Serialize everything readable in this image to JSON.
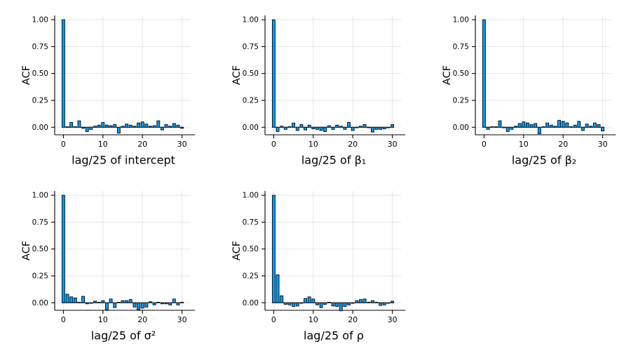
{
  "figure": {
    "background": "#ffffff",
    "rows": 2,
    "cols": 3,
    "note_empty_cell": "bottom-right cell is blank"
  },
  "style": {
    "bar_fill": "#009AFA",
    "bar_stroke": "#0b0b0b",
    "grid_color": "#e3e3e3",
    "spine_color": "#000000",
    "zero_line_color": "#111111"
  },
  "chart_data": [
    {
      "type": "bar",
      "title": "",
      "xlabel": "lag/25 of intercept",
      "ylabel": "ACF",
      "x": [
        0,
        1,
        2,
        3,
        4,
        5,
        6,
        7,
        8,
        9,
        10,
        11,
        12,
        13,
        14,
        15,
        16,
        17,
        18,
        19,
        20,
        21,
        22,
        23,
        24,
        25,
        26,
        27,
        28,
        29,
        30
      ],
      "values": [
        1.0,
        0.005,
        0.045,
        0.005,
        0.06,
        -0.01,
        -0.04,
        -0.02,
        0.01,
        0.02,
        0.045,
        0.02,
        0.015,
        0.025,
        -0.055,
        0.01,
        0.03,
        0.02,
        0.01,
        0.04,
        0.05,
        0.03,
        0.01,
        0.015,
        0.06,
        -0.025,
        0.025,
        0.01,
        0.035,
        0.02,
        -0.01
      ],
      "xticks": [
        0,
        10,
        20,
        30
      ],
      "yticks": [
        0,
        0.25,
        0.5,
        0.75,
        1.0
      ],
      "ytick_labels": [
        "0.00",
        "0.25",
        "0.50",
        "0.75",
        "1.00"
      ],
      "xlim": [
        -2.2,
        32.2
      ],
      "ylim": [
        -0.07,
        1.04
      ],
      "grid": true
    },
    {
      "type": "bar",
      "title": "",
      "xlabel": "lag/25 of β₁",
      "ylabel": "ACF",
      "x": [
        0,
        1,
        2,
        3,
        4,
        5,
        6,
        7,
        8,
        9,
        10,
        11,
        12,
        13,
        14,
        15,
        16,
        17,
        18,
        19,
        20,
        21,
        22,
        23,
        24,
        25,
        26,
        27,
        28,
        29,
        30
      ],
      "values": [
        1.0,
        -0.04,
        0.01,
        -0.02,
        0.005,
        0.04,
        -0.03,
        0.025,
        -0.025,
        0.02,
        -0.015,
        -0.02,
        -0.03,
        -0.04,
        0.015,
        -0.02,
        0.02,
        0.01,
        -0.02,
        0.045,
        -0.03,
        -0.005,
        0.01,
        0.025,
        -0.005,
        -0.045,
        -0.02,
        -0.02,
        -0.015,
        -0.005,
        0.025
      ],
      "xticks": [
        0,
        10,
        20,
        30
      ],
      "yticks": [
        0,
        0.25,
        0.5,
        0.75,
        1.0
      ],
      "ytick_labels": [
        "0.00",
        "0.25",
        "0.50",
        "0.75",
        "1.00"
      ],
      "xlim": [
        -2.2,
        32.2
      ],
      "ylim": [
        -0.07,
        1.04
      ],
      "grid": true
    },
    {
      "type": "bar",
      "title": "",
      "xlabel": "lag/25 of β₂",
      "ylabel": "ACF",
      "x": [
        0,
        1,
        2,
        3,
        4,
        5,
        6,
        7,
        8,
        9,
        10,
        11,
        12,
        13,
        14,
        15,
        16,
        17,
        18,
        19,
        20,
        21,
        22,
        23,
        24,
        25,
        26,
        27,
        28,
        29,
        30
      ],
      "values": [
        1.0,
        -0.02,
        0.005,
        0.005,
        0.06,
        -0.005,
        -0.04,
        -0.02,
        0.01,
        0.035,
        0.05,
        0.04,
        0.025,
        0.035,
        -0.06,
        0.005,
        0.04,
        0.02,
        0.01,
        0.065,
        0.055,
        0.04,
        0.005,
        0.02,
        0.055,
        -0.03,
        0.03,
        0.01,
        0.04,
        0.025,
        -0.035
      ],
      "xticks": [
        0,
        10,
        20,
        30
      ],
      "yticks": [
        0,
        0.25,
        0.5,
        0.75,
        1.0
      ],
      "ytick_labels": [
        "0.00",
        "0.25",
        "0.50",
        "0.75",
        "1.00"
      ],
      "xlim": [
        -2.2,
        32.2
      ],
      "ylim": [
        -0.07,
        1.04
      ],
      "grid": true
    },
    {
      "type": "bar",
      "title": "",
      "xlabel": "lag/25 of σ²",
      "ylabel": "ACF",
      "x": [
        0,
        1,
        2,
        3,
        4,
        5,
        6,
        7,
        8,
        9,
        10,
        11,
        12,
        13,
        14,
        15,
        16,
        17,
        18,
        19,
        20,
        21,
        22,
        23,
        24,
        25,
        26,
        27,
        28,
        29,
        30
      ],
      "values": [
        1.0,
        0.08,
        0.055,
        0.045,
        0.005,
        0.06,
        -0.01,
        -0.005,
        0.015,
        0.005,
        0.02,
        -0.065,
        0.035,
        -0.045,
        0.005,
        0.02,
        0.02,
        0.03,
        -0.04,
        -0.065,
        -0.05,
        -0.04,
        0.01,
        -0.02,
        0.005,
        -0.01,
        -0.01,
        -0.02,
        0.035,
        -0.02,
        0.005
      ],
      "xticks": [
        0,
        10,
        20,
        30
      ],
      "yticks": [
        0,
        0.25,
        0.5,
        0.75,
        1.0
      ],
      "ytick_labels": [
        "0.00",
        "0.25",
        "0.50",
        "0.75",
        "1.00"
      ],
      "xlim": [
        -2.2,
        32.2
      ],
      "ylim": [
        -0.07,
        1.04
      ],
      "grid": true
    },
    {
      "type": "bar",
      "title": "",
      "xlabel": "lag/25 of ρ",
      "ylabel": "ACF",
      "x": [
        0,
        1,
        2,
        3,
        4,
        5,
        6,
        7,
        8,
        9,
        10,
        11,
        12,
        13,
        14,
        15,
        16,
        17,
        18,
        19,
        20,
        21,
        22,
        23,
        24,
        25,
        26,
        27,
        28,
        29,
        30
      ],
      "values": [
        1.0,
        0.26,
        0.065,
        -0.015,
        -0.02,
        -0.035,
        -0.03,
        -0.005,
        0.04,
        0.055,
        0.035,
        -0.02,
        -0.045,
        -0.015,
        0.005,
        -0.03,
        -0.035,
        -0.075,
        -0.035,
        -0.02,
        -0.005,
        0.02,
        0.03,
        0.035,
        0.005,
        0.02,
        0.005,
        -0.025,
        -0.02,
        -0.005,
        0.015
      ],
      "xticks": [
        0,
        10,
        20,
        30
      ],
      "yticks": [
        0,
        0.25,
        0.5,
        0.75,
        1.0
      ],
      "ytick_labels": [
        "0.00",
        "0.25",
        "0.50",
        "0.75",
        "1.00"
      ],
      "xlim": [
        -2.2,
        32.2
      ],
      "ylim": [
        -0.07,
        1.04
      ],
      "grid": true
    }
  ]
}
